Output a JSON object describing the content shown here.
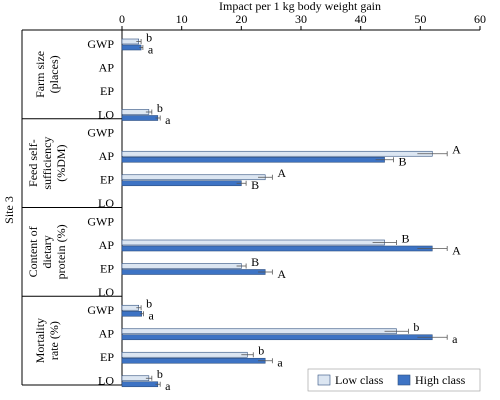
{
  "chart_data": {
    "type": "bar",
    "orientation": "horizontal",
    "x_label": "Impact per 1 kg body weight gain",
    "xlim": [
      0,
      60
    ],
    "xticks": [
      0,
      10,
      20,
      30,
      40,
      50,
      60
    ],
    "group_label": "Site 3",
    "series": [
      {
        "name": "Low class",
        "color": "#dce6f2"
      },
      {
        "name": "High class",
        "color": "#3d73c4"
      }
    ],
    "panels": [
      {
        "label": [
          "Farm size",
          "(places)"
        ],
        "categories": [
          "GWP",
          "AP",
          "EP",
          "LO"
        ],
        "values": [
          [
            2.8,
            null,
            null,
            4.5
          ],
          [
            3.2,
            null,
            null,
            6
          ]
        ],
        "errors": [
          [
            0.4,
            null,
            null,
            0.5
          ],
          [
            0.3,
            null,
            null,
            0.4
          ]
        ],
        "letters": [
          [
            "b",
            null,
            null,
            "b"
          ],
          [
            "a",
            null,
            null,
            "a"
          ]
        ]
      },
      {
        "label": [
          "Feed self-",
          "sufficiency",
          "(%DM)"
        ],
        "categories": [
          "GWP",
          "AP",
          "EP",
          "LO"
        ],
        "values": [
          [
            null,
            52,
            24,
            null
          ],
          [
            null,
            44,
            20,
            null
          ]
        ],
        "errors": [
          [
            null,
            2.5,
            1.2,
            null
          ],
          [
            null,
            1.5,
            0.8,
            null
          ]
        ],
        "letters": [
          [
            null,
            "A",
            "A",
            null
          ],
          [
            null,
            "B",
            "B",
            null
          ]
        ]
      },
      {
        "label": [
          "Content of",
          "dietary",
          "protein (%)"
        ],
        "categories": [
          "GWP",
          "AP",
          "EP",
          "LO"
        ],
        "values": [
          [
            null,
            44,
            20,
            null
          ],
          [
            null,
            52,
            24,
            null
          ]
        ],
        "errors": [
          [
            null,
            2,
            0.8,
            null
          ],
          [
            null,
            2.5,
            1.2,
            null
          ]
        ],
        "letters": [
          [
            null,
            "B",
            "B",
            null
          ],
          [
            null,
            "A",
            "A",
            null
          ]
        ]
      },
      {
        "label": [
          "Mortality",
          "rate (%)"
        ],
        "categories": [
          "GWP",
          "AP",
          "EP",
          "LO"
        ],
        "values": [
          [
            2.8,
            46,
            21,
            4.5
          ],
          [
            3.3,
            52,
            24,
            6
          ]
        ],
        "errors": [
          [
            0.4,
            2,
            1,
            0.5
          ],
          [
            0.3,
            2.5,
            1.2,
            0.4
          ]
        ],
        "letters": [
          [
            "b",
            "b",
            "b",
            "b"
          ],
          [
            "a",
            "a",
            "a",
            "a"
          ]
        ]
      }
    ]
  }
}
